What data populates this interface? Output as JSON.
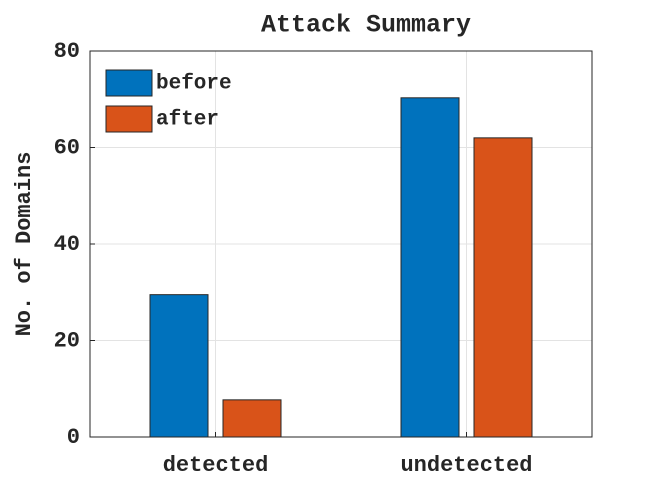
{
  "chart_data": {
    "type": "bar",
    "title": "Attack Summary",
    "y_label": "No. of Domains",
    "categories": [
      "detected",
      "undetected"
    ],
    "series": [
      {
        "name": "before",
        "color": "#0072bd",
        "values": [
          29.5,
          70.3
        ]
      },
      {
        "name": "after",
        "color": "#d95319",
        "values": [
          7.7,
          62.0
        ]
      }
    ],
    "ylim": [
      0,
      80
    ],
    "yticks": [
      0,
      20,
      40,
      60,
      80
    ],
    "grid": true,
    "legend": "top-left"
  }
}
